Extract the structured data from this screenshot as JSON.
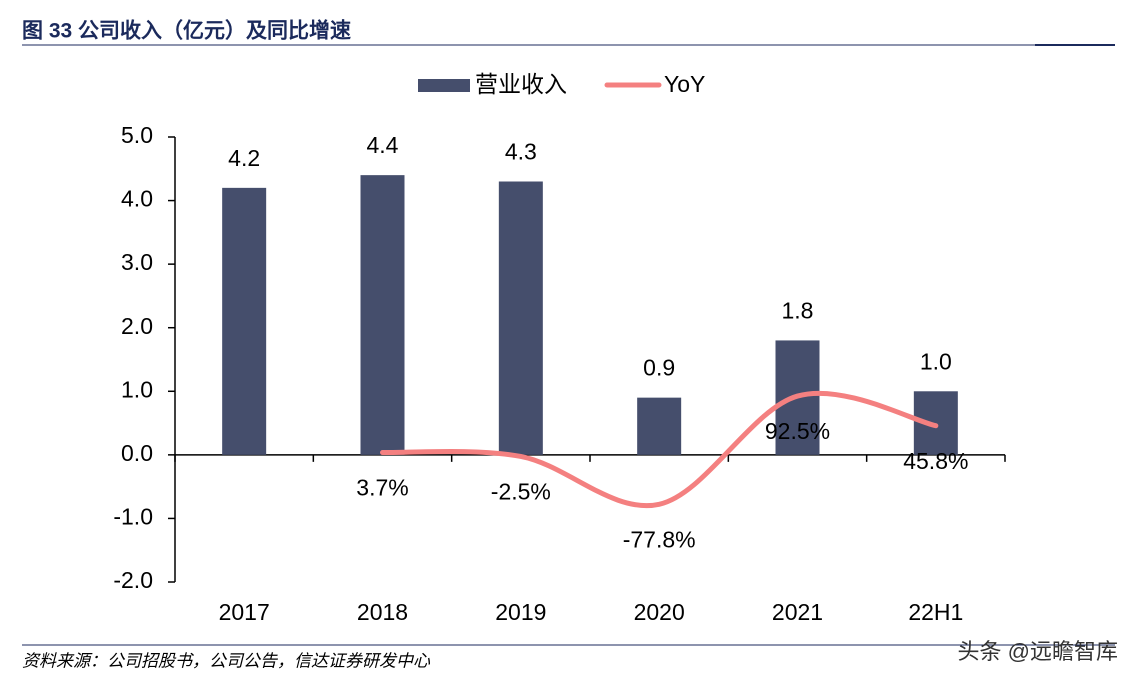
{
  "title": "图 33 公司收入（亿元）及同比增速",
  "source": "资料来源：公司招股书，公司公告，信达证券研发中心",
  "watermark": "头条 @远瞻智库",
  "chart_data": {
    "type": "bar",
    "categories": [
      "2017",
      "2018",
      "2019",
      "2020",
      "2021",
      "22H1"
    ],
    "series": [
      {
        "name": "营业收入",
        "type": "bar",
        "color": "#454e6c",
        "values": [
          4.2,
          4.4,
          4.3,
          0.9,
          1.8,
          1.0
        ],
        "value_labels": [
          "4.2",
          "4.4",
          "4.3",
          "0.9",
          "1.8",
          "1.0"
        ]
      },
      {
        "name": "YoY",
        "type": "line",
        "color": "#f48080",
        "smooth": true,
        "values": [
          null,
          0.037,
          -0.025,
          -0.778,
          0.925,
          0.458
        ],
        "value_labels": [
          null,
          "3.7%",
          "-2.5%",
          "-77.8%",
          "92.5%",
          "45.8%"
        ]
      }
    ],
    "ylim": [
      -2,
      5
    ],
    "yticks": [
      {
        "value": -2,
        "label": "-2.0"
      },
      {
        "value": -1,
        "label": "-1.0"
      },
      {
        "value": 0,
        "label": "0.0"
      },
      {
        "value": 1,
        "label": "1.0"
      },
      {
        "value": 2,
        "label": "2.0"
      },
      {
        "value": 3,
        "label": "3.0"
      },
      {
        "value": 4,
        "label": "4.0"
      },
      {
        "value": 5,
        "label": "5.0"
      }
    ],
    "legend": "top"
  }
}
